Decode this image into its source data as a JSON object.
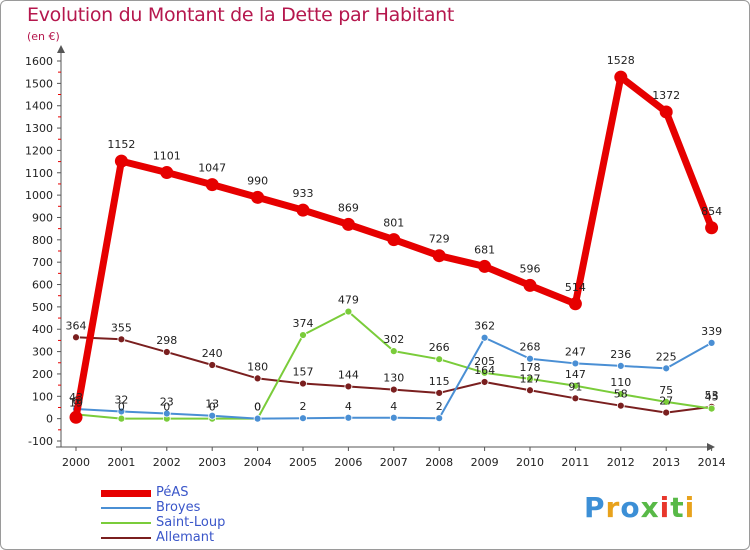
{
  "title": "Evolution du Montant de la Dette par Habitant",
  "subtitle": "(en €)",
  "logo": {
    "text": "Proxiti",
    "colors": [
      "#3c8fd6",
      "#e8a21c",
      "#3c8fd6",
      "#58b947",
      "#e8372c",
      "#58b947",
      "#e8a21c"
    ]
  },
  "chart_data": {
    "type": "line",
    "x": [
      "2000",
      "2001",
      "2002",
      "2003",
      "2004",
      "2005",
      "2006",
      "2007",
      "2008",
      "2009",
      "2010",
      "2011",
      "2012",
      "2013",
      "2014"
    ],
    "ylim": [
      -100,
      1600
    ],
    "yticks": [
      -100,
      0,
      100,
      200,
      300,
      400,
      500,
      600,
      700,
      800,
      900,
      1000,
      1100,
      1200,
      1300,
      1400,
      1500,
      1600
    ],
    "grid": false,
    "legend_position": "bottom-left",
    "series": [
      {
        "name": "PéAS",
        "color": "#e60000",
        "values": [
          6,
          1152,
          1101,
          1047,
          990,
          933,
          869,
          801,
          729,
          681,
          596,
          514,
          1528,
          1372,
          854
        ]
      },
      {
        "name": "Broyes",
        "color": "#4a8fd4",
        "values": [
          43,
          32,
          23,
          13,
          0,
          2,
          4,
          4,
          2,
          362,
          268,
          247,
          236,
          225,
          339
        ]
      },
      {
        "name": "Saint-Loup",
        "color": "#7acc3a",
        "values": [
          19,
          0,
          0,
          0,
          0,
          374,
          479,
          302,
          266,
          205,
          178,
          147,
          110,
          75,
          45
        ]
      },
      {
        "name": "Allemant",
        "color": "#7a1f1f",
        "values": [
          364,
          355,
          298,
          240,
          180,
          157,
          144,
          130,
          115,
          164,
          127,
          91,
          58,
          27,
          53
        ]
      }
    ],
    "labels": {
      "PéAS": [
        "6",
        "1152",
        "1101",
        "1047",
        "990",
        "933",
        "869",
        "801",
        "729",
        "681",
        "596",
        "514",
        "1528",
        "1372",
        "854"
      ],
      "Broyes": [
        "43",
        "32",
        "23",
        "13",
        "0",
        "2",
        "4",
        "4",
        "2",
        "362",
        "268",
        "247",
        "236",
        "225",
        "339"
      ],
      "Saint-Loup": [
        "19",
        "0",
        "0",
        "0",
        "0",
        "374",
        "479",
        "302",
        "266",
        "205",
        "178",
        "147",
        "110",
        "75",
        "45"
      ],
      "Allemant": [
        "364",
        "355",
        "298",
        "240",
        "180",
        "157",
        "144",
        "130",
        "115",
        "164",
        "127",
        "91",
        "58",
        "27",
        "53"
      ]
    }
  }
}
